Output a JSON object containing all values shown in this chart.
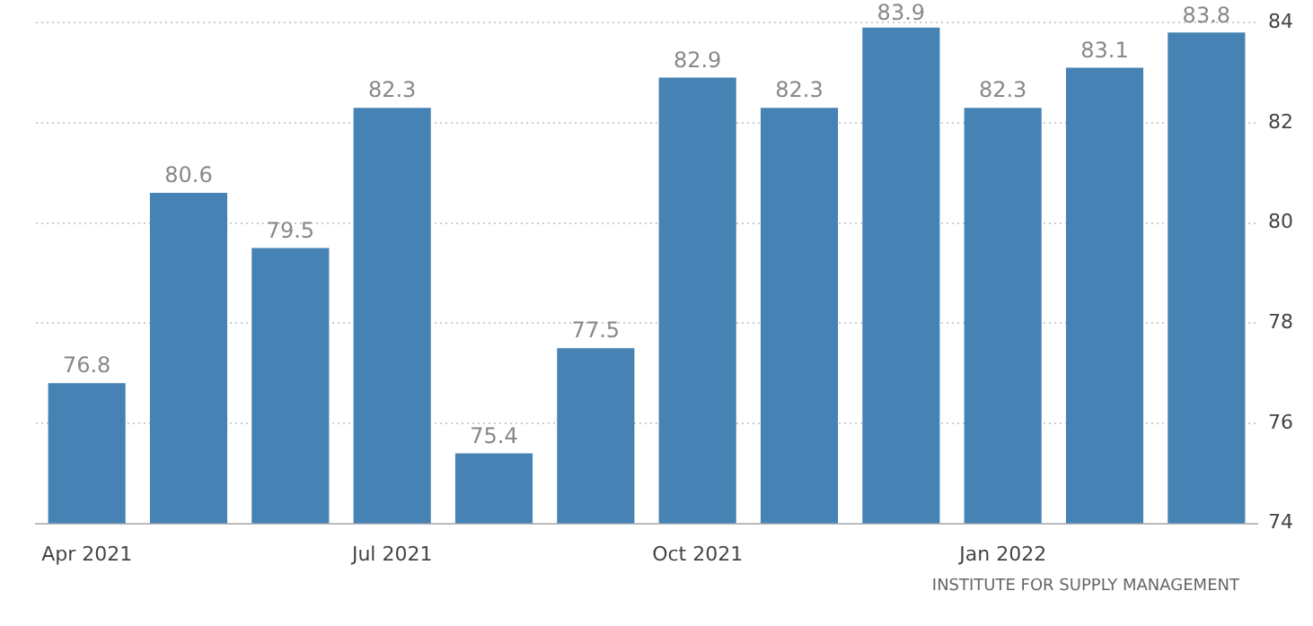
{
  "chart_data": {
    "type": "bar",
    "categories": [
      "Apr 2021",
      null,
      null,
      "Jul 2021",
      null,
      null,
      "Oct 2021",
      null,
      null,
      "Jan 2022",
      null,
      null
    ],
    "values": [
      76.8,
      80.6,
      79.5,
      82.3,
      75.4,
      77.5,
      82.9,
      82.3,
      83.9,
      82.3,
      83.1,
      83.8
    ],
    "color": "#4682b4",
    "ylim": [
      74,
      84
    ],
    "yticks": [
      74,
      76,
      78,
      80,
      82,
      84
    ],
    "grid": "y",
    "data_labels": true,
    "legend": false,
    "annotations": [
      "INSTITUTE FOR SUPPLY MANAGEMENT"
    ]
  }
}
